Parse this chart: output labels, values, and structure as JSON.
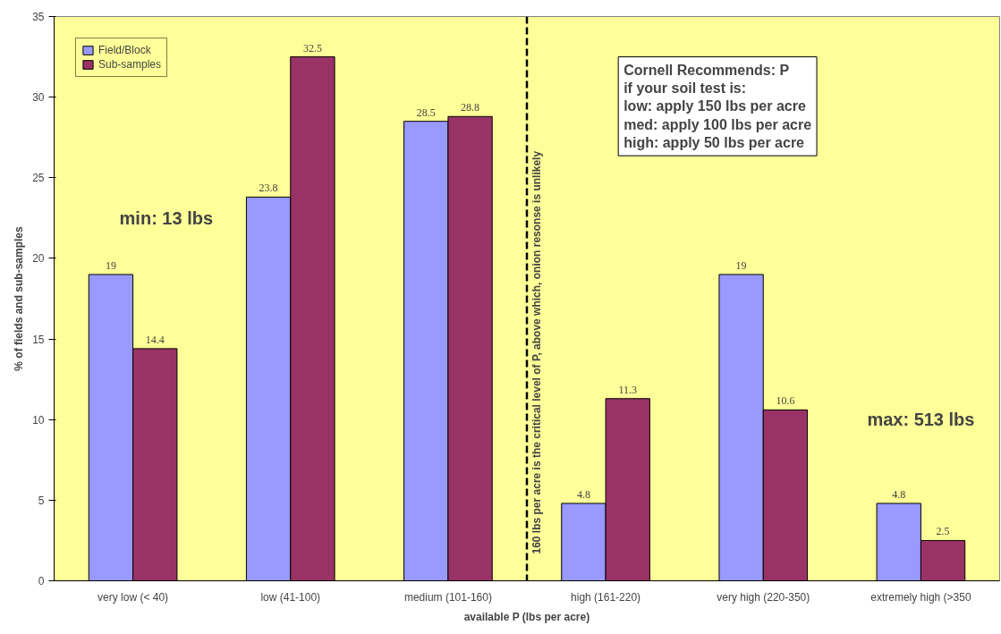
{
  "chart_data": {
    "type": "bar",
    "xlabel": "available P (lbs per acre)",
    "ylabel": "% of fields and sub-samples",
    "categories": [
      "very low (< 40)",
      "low (41-100)",
      "medium (101-160)",
      "high (161-220)",
      "very high (220-350)",
      "extremely high (>350"
    ],
    "series": [
      {
        "name": "Field/Block",
        "color": "#9999ff",
        "values": [
          19,
          23.8,
          28.5,
          4.8,
          19,
          4.8
        ]
      },
      {
        "name": "Sub-samples",
        "color": "#993366",
        "values": [
          14.4,
          32.5,
          28.8,
          11.3,
          10.6,
          2.5
        ]
      }
    ],
    "ylim": [
      0,
      35
    ],
    "yticks": [
      0,
      5,
      10,
      15,
      20,
      25,
      30,
      35
    ],
    "grid": false,
    "legend": "top left",
    "data_labels": true,
    "annotations": [
      "min: 13 lbs",
      "max: 513 lbs",
      "160 lbs per acre is the critical level of P, above which, onion resonse is unlikely",
      "Cornell Recommends: P\nif your soil test is:\nlow: apply 150 lbs per acre\nmed: apply 100 lbs per acre\nhigh: apply 50 lbs per acre"
    ]
  }
}
